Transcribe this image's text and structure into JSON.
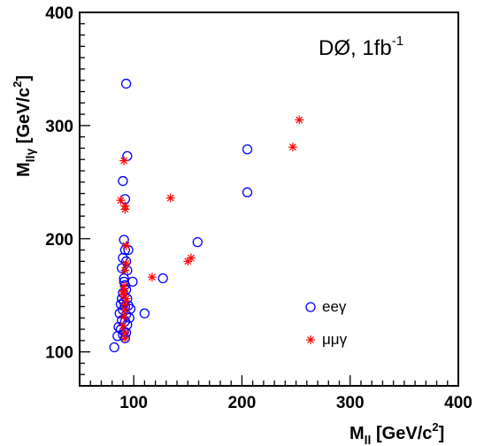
{
  "chart_data": {
    "type": "scatter",
    "title": "",
    "annotation": {
      "main": "DØ, 1fb",
      "sup": "-1"
    },
    "xlabel": {
      "main": "M",
      "sub": "ll",
      "unit": " [GeV/c",
      "sup": "2",
      "close": "]"
    },
    "ylabel": {
      "main": "M",
      "sub": "llγ",
      "unit": " [GeV/c",
      "sup": "2",
      "close": "]"
    },
    "xlim": [
      50,
      400
    ],
    "ylim": [
      70,
      400
    ],
    "x_ticks": [
      100,
      200,
      300,
      400
    ],
    "y_ticks": [
      100,
      200,
      300,
      400
    ],
    "x_tick_labels": [
      "100",
      "200",
      "300",
      "400"
    ],
    "y_tick_labels": [
      "100",
      "200",
      "300",
      "400"
    ],
    "grid": false,
    "legend_position": "bottom-right",
    "series": [
      {
        "name": "eeγ",
        "marker": "open-circle",
        "color": "#0000ff",
        "points": [
          [
            93,
            337
          ],
          [
            94,
            273
          ],
          [
            205,
            279
          ],
          [
            205,
            241
          ],
          [
            90,
            251
          ],
          [
            92,
            235
          ],
          [
            159,
            197
          ],
          [
            91,
            199
          ],
          [
            92,
            190
          ],
          [
            95,
            190
          ],
          [
            90,
            183
          ],
          [
            93,
            180
          ],
          [
            89,
            174
          ],
          [
            94,
            172
          ],
          [
            91,
            165
          ],
          [
            91,
            162
          ],
          [
            127,
            165
          ],
          [
            99,
            162
          ],
          [
            92,
            159
          ],
          [
            93,
            155
          ],
          [
            90,
            152
          ],
          [
            89,
            147
          ],
          [
            94,
            147
          ],
          [
            91,
            144
          ],
          [
            88,
            142
          ],
          [
            92,
            140
          ],
          [
            95,
            141
          ],
          [
            97,
            138
          ],
          [
            90,
            137
          ],
          [
            87,
            134
          ],
          [
            93,
            133
          ],
          [
            96,
            130
          ],
          [
            110,
            134
          ],
          [
            89,
            128
          ],
          [
            92,
            127
          ],
          [
            94,
            124
          ],
          [
            86,
            122
          ],
          [
            88,
            120
          ],
          [
            91,
            118
          ],
          [
            93,
            117
          ],
          [
            90,
            115
          ],
          [
            85,
            114
          ],
          [
            92,
            112
          ],
          [
            82,
            104
          ]
        ]
      },
      {
        "name": "μμγ",
        "marker": "star",
        "color": "#ff0000",
        "points": [
          [
            253,
            305
          ],
          [
            247,
            281
          ],
          [
            91,
            269
          ],
          [
            88,
            234
          ],
          [
            92,
            229
          ],
          [
            92,
            226
          ],
          [
            134,
            236
          ],
          [
            93,
            194
          ],
          [
            93,
            178
          ],
          [
            92,
            172
          ],
          [
            117,
            166
          ],
          [
            150,
            180
          ],
          [
            153,
            183
          ],
          [
            91,
            158
          ],
          [
            91,
            154
          ],
          [
            90,
            151
          ],
          [
            93,
            147
          ],
          [
            92,
            142
          ],
          [
            92,
            137
          ],
          [
            91,
            131
          ],
          [
            90,
            123
          ],
          [
            92,
            117
          ],
          [
            92,
            112
          ]
        ]
      }
    ]
  }
}
